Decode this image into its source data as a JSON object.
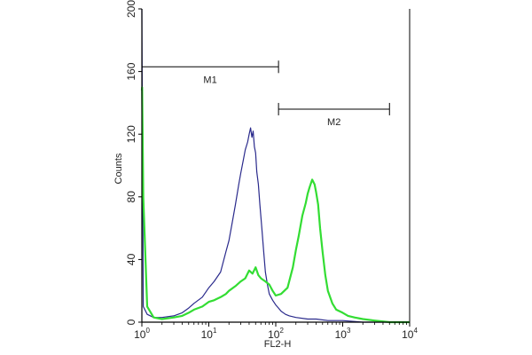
{
  "chart_data": {
    "type": "line",
    "x_scale": "log",
    "xlabel": "FL2-H",
    "ylabel": "Counts",
    "xlim": [
      1,
      10000
    ],
    "ylim": [
      0,
      200
    ],
    "x_ticks": [
      {
        "value": 1,
        "base": "10",
        "exp": "0"
      },
      {
        "value": 10,
        "base": "10",
        "exp": "1"
      },
      {
        "value": 100,
        "base": "10",
        "exp": "2"
      },
      {
        "value": 1000,
        "base": "10",
        "exp": "3"
      },
      {
        "value": 10000,
        "base": "10",
        "exp": "4"
      }
    ],
    "y_ticks": [
      {
        "value": 0,
        "label": "0"
      },
      {
        "value": 40,
        "label": "40"
      },
      {
        "value": 80,
        "label": "80"
      },
      {
        "value": 120,
        "label": "120"
      },
      {
        "value": 160,
        "label": "160"
      },
      {
        "value": 200,
        "label": "200"
      }
    ],
    "markers": [
      {
        "label": "M1",
        "x_start": 1,
        "x_end": 110,
        "y": 163
      },
      {
        "label": "M2",
        "x_start": 110,
        "x_end": 5000,
        "y": 136
      }
    ],
    "series": [
      {
        "color": "#2a2a8c",
        "width": 1.2,
        "x": [
          1,
          1.01,
          1.05,
          1.2,
          1.5,
          2,
          3,
          4,
          5,
          6,
          8,
          10,
          12,
          15,
          18,
          20,
          22,
          25,
          28,
          30,
          33,
          35,
          38,
          40,
          42,
          44,
          46,
          48,
          50,
          52,
          55,
          58,
          62,
          66,
          70,
          75,
          80,
          90,
          100,
          110,
          120,
          140,
          160,
          200,
          300,
          400,
          600,
          1000,
          2000,
          5000,
          10000
        ],
        "y": [
          200,
          160,
          10,
          5,
          3,
          3,
          4,
          6,
          9,
          12,
          16,
          22,
          26,
          32,
          45,
          52,
          62,
          75,
          88,
          95,
          104,
          110,
          115,
          120,
          124,
          118,
          122,
          112,
          108,
          96,
          88,
          75,
          60,
          45,
          32,
          24,
          18,
          14,
          11,
          9,
          7,
          5,
          4,
          3,
          2,
          2,
          1,
          1,
          0,
          0,
          0
        ]
      },
      {
        "color": "#33dd33",
        "width": 2.2,
        "x": [
          1,
          1.01,
          1.05,
          1.2,
          1.5,
          2,
          3,
          4,
          5,
          6,
          8,
          10,
          12,
          15,
          18,
          20,
          25,
          30,
          35,
          40,
          45,
          50,
          55,
          60,
          70,
          80,
          90,
          100,
          120,
          150,
          180,
          200,
          220,
          250,
          280,
          300,
          320,
          350,
          380,
          400,
          430,
          460,
          500,
          550,
          600,
          700,
          800,
          1000,
          1200,
          1500,
          2000,
          3000,
          5000,
          10000
        ],
        "y": [
          148,
          150,
          80,
          10,
          3,
          2,
          3,
          4,
          6,
          8,
          10,
          13,
          14,
          16,
          18,
          20,
          23,
          26,
          28,
          33,
          31,
          35,
          30,
          28,
          26,
          24,
          20,
          17,
          18,
          22,
          35,
          46,
          55,
          68,
          76,
          82,
          86,
          91,
          88,
          83,
          75,
          60,
          45,
          30,
          20,
          12,
          8,
          6,
          4,
          3,
          2,
          1,
          0,
          0
        ]
      }
    ]
  }
}
